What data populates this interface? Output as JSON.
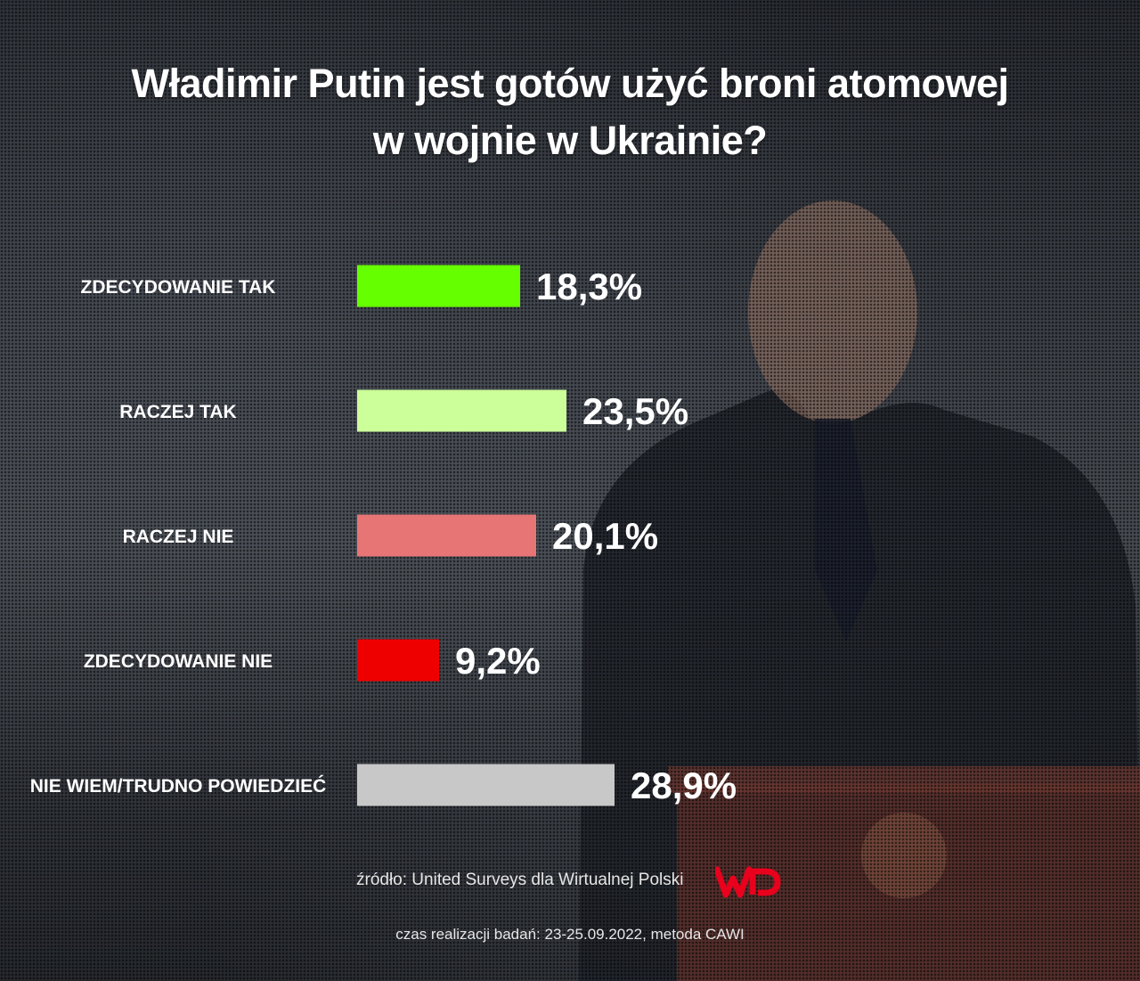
{
  "title": {
    "line1": "Władimir Putin jest gotów użyć broni atomowej",
    "line2": "w wojnie w Ukrainie?"
  },
  "chart_data": {
    "type": "bar",
    "orientation": "horizontal",
    "title": "Władimir Putin jest gotów użyć broni atomowej w wojnie w Ukrainie?",
    "categories": [
      "ZDECYDOWANIE TAK",
      "RACZEJ TAK",
      "RACZEJ NIE",
      "ZDECYDOWANIE NIE",
      "NIE WIEM/TRUDNO POWIEDZIEĆ"
    ],
    "values": [
      18.3,
      23.5,
      20.1,
      9.2,
      28.9
    ],
    "value_labels": [
      "18,3%",
      "23,5%",
      "20,1%",
      "9,2%",
      "28,9%"
    ],
    "colors": [
      "#66ff00",
      "#ccff99",
      "#e87575",
      "#ee0000",
      "#c8c8c8"
    ],
    "unit": "%",
    "grid": false,
    "legend": "none"
  },
  "footer": {
    "source": "źródło: United Surveys dla Wirtualnej Polski",
    "logo_icon": "wp-logo-icon",
    "logo_color": "#e8001c",
    "date_method": "czas realizacji badań: 23-25.09.2022, metoda CAWI"
  }
}
